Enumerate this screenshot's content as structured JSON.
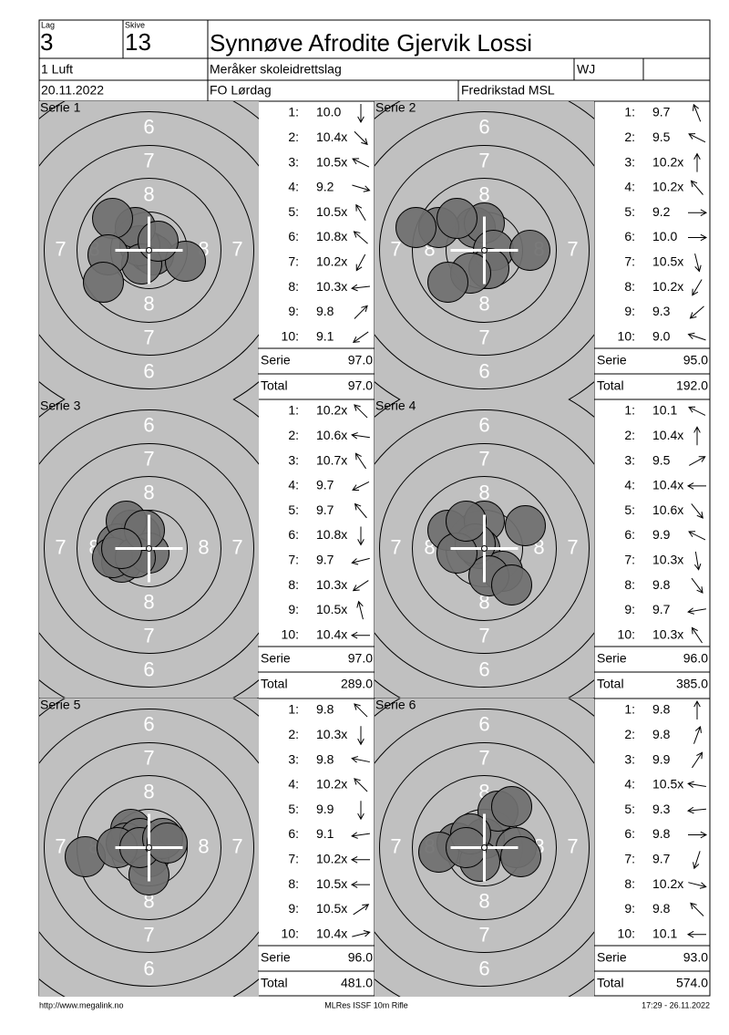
{
  "header": {
    "lag_label": "Lag",
    "lag": "3",
    "skive_label": "Skive",
    "skive": "13",
    "name": "Synnøve Afrodite Gjervik Lossi",
    "class": "1 Luft",
    "club": "Meråker skoleidrettslag",
    "category": "WJ",
    "date": "20.11.2022",
    "event": "FO Lørdag",
    "venue": "Fredrikstad MSL"
  },
  "rings": [
    "6",
    "7",
    "8"
  ],
  "shot_numbers": [
    "1:",
    "2:",
    "3:",
    "4:",
    "5:",
    "6:",
    "7:",
    "8:",
    "9:",
    "10:"
  ],
  "serie_label": "Serie",
  "total_label": "Total",
  "series": [
    {
      "title": "Serie 1",
      "scores": [
        "10.0",
        "10.4x",
        "10.5x",
        "9.2",
        "10.5x",
        "10.8x",
        "10.2x",
        "10.3x",
        "9.8",
        "9.1"
      ],
      "serie": "97.0",
      "total": "97.0"
    },
    {
      "title": "Serie 2",
      "scores": [
        "9.7",
        "9.5",
        "10.2x",
        "10.2x",
        "9.2",
        "10.0",
        "10.5x",
        "10.2x",
        "9.3",
        "9.0"
      ],
      "serie": "95.0",
      "total": "192.0"
    },
    {
      "title": "Serie 3",
      "scores": [
        "10.2x",
        "10.6x",
        "10.7x",
        "9.7",
        "9.7",
        "10.8x",
        "9.7",
        "10.3x",
        "10.5x",
        "10.4x"
      ],
      "serie": "97.0",
      "total": "289.0"
    },
    {
      "title": "Serie 4",
      "scores": [
        "10.1",
        "10.4x",
        "9.5",
        "10.4x",
        "10.6x",
        "9.9",
        "10.3x",
        "9.8",
        "9.7",
        "10.3x"
      ],
      "serie": "96.0",
      "total": "385.0"
    },
    {
      "title": "Serie 5",
      "scores": [
        "9.8",
        "10.3x",
        "9.8",
        "10.2x",
        "9.9",
        "9.1",
        "10.2x",
        "10.5x",
        "10.5x",
        "10.4x"
      ],
      "serie": "96.0",
      "total": "481.0"
    },
    {
      "title": "Serie 6",
      "scores": [
        "9.8",
        "9.8",
        "9.9",
        "10.5x",
        "9.3",
        "9.8",
        "9.7",
        "10.2x",
        "9.8",
        "10.1"
      ],
      "serie": "93.0",
      "total": "574.0"
    }
  ],
  "footer": {
    "url": "http://www.megalink.no",
    "program": "MLRes ISSF 10m Rifle",
    "timestamp": "17:29 - 26.11.2022"
  }
}
